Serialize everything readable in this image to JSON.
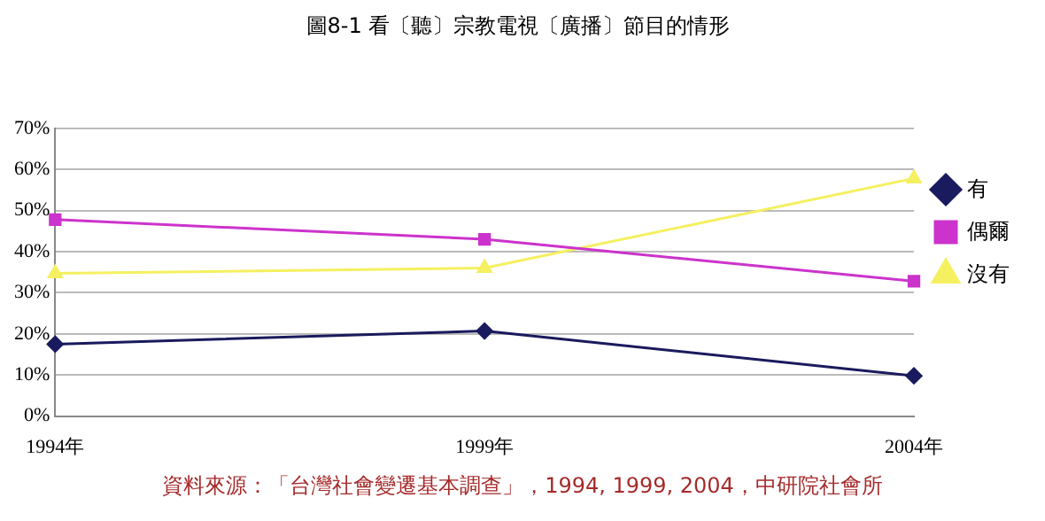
{
  "chart_data": {
    "type": "line",
    "title": "圖8-1 看〔聽〕宗教電視〔廣播〕節目的情形",
    "categories": [
      "1994年",
      "1999年",
      "2004年"
    ],
    "series": [
      {
        "name": "有",
        "color": "#1a1a5e",
        "marker": "diamond",
        "values": [
          17.5,
          20.7,
          9.8
        ]
      },
      {
        "name": "偶爾",
        "color": "#cc33cc",
        "marker": "square",
        "values": [
          47.8,
          43,
          32.8
        ]
      },
      {
        "name": "沒有",
        "color": "#f5f060",
        "marker": "triangle",
        "values": [
          34.7,
          36,
          57.8
        ]
      }
    ],
    "ylim": [
      0,
      70
    ],
    "yticks": [
      {
        "value": 0,
        "label": "0%"
      },
      {
        "value": 10,
        "label": "10%"
      },
      {
        "value": 20,
        "label": "20%"
      },
      {
        "value": 30,
        "label": "30%"
      },
      {
        "value": 40,
        "label": "40%"
      },
      {
        "value": 50,
        "label": "50%"
      },
      {
        "value": 60,
        "label": "60%"
      },
      {
        "value": 70,
        "label": "70%"
      }
    ],
    "grid": "y",
    "legend": "right",
    "annotations": [
      "資料來源：「台灣社會變遷基本調查」，1994, 1999, 2004，中研院社會所"
    ]
  }
}
